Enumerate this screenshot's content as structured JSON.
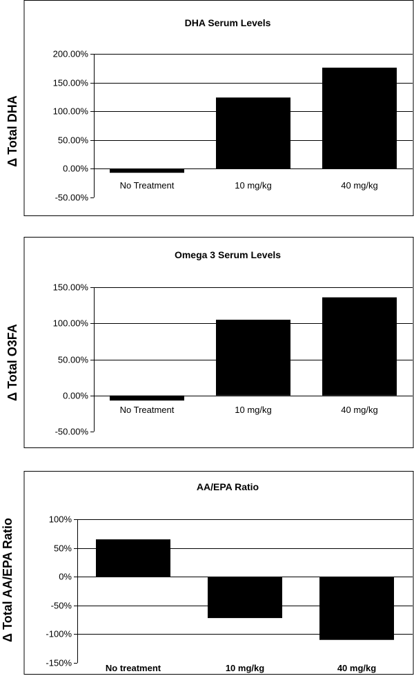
{
  "chart_data": [
    {
      "type": "bar",
      "title": "DHA Serum Levels",
      "ylabel": "Δ Total DHA",
      "xlabel": "",
      "categories": [
        "No Treatment",
        "10 mg/kg",
        "40 mg/kg"
      ],
      "values": [
        -7,
        124,
        176
      ],
      "ylim": [
        -50,
        200
      ],
      "yticks": [
        "200.00%",
        "150.00%",
        "100.00%",
        "50.00%",
        "0.00%",
        "-50.00%"
      ],
      "grid": true,
      "bold_categories": false,
      "bar_color": "#000000"
    },
    {
      "type": "bar",
      "title": "Omega 3 Serum Levels",
      "ylabel": "Δ Total O3FA",
      "xlabel": "",
      "categories": [
        "No Treatment",
        "10 mg/kg",
        "40 mg/kg"
      ],
      "values": [
        -7,
        105,
        136
      ],
      "ylim": [
        -50,
        150
      ],
      "yticks": [
        "150.00%",
        "100.00%",
        "50.00%",
        "0.00%",
        "-50.00%"
      ],
      "grid": true,
      "bold_categories": false,
      "bar_color": "#000000"
    },
    {
      "type": "bar",
      "title": "AA/EPA Ratio",
      "ylabel": "Δ Total AA/EPA Ratio",
      "xlabel": "",
      "categories": [
        "No treatment",
        "10 mg/kg",
        "40 mg/kg"
      ],
      "values": [
        65,
        -72,
        -110
      ],
      "ylim": [
        -150,
        100
      ],
      "yticks": [
        "100%",
        "50%",
        "0%",
        "-50%",
        "-100%",
        "-150%"
      ],
      "grid": true,
      "bold_categories": true,
      "bar_color": "#000000"
    }
  ]
}
